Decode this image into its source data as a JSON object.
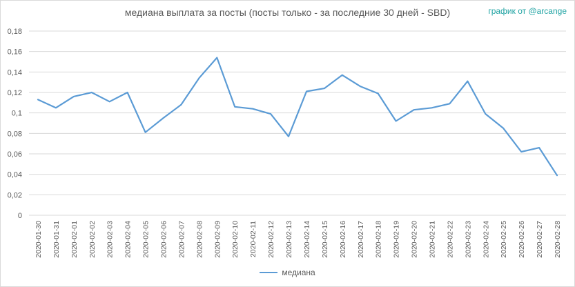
{
  "colors": {
    "series": "#5b9bd5",
    "grid": "#d9d9d9",
    "text": "#595959",
    "credit": "#1fa3a3"
  },
  "credit": "график от @arcange",
  "chart_data": {
    "type": "line",
    "title": "медиана выплата за посты  (посты только - за последние 30 дней - SBD)",
    "xlabel": "",
    "ylabel": "",
    "ylim": [
      0,
      0.18
    ],
    "yticks": [
      "0",
      "0,02",
      "0,04",
      "0,06",
      "0,08",
      "0,1",
      "0,12",
      "0,14",
      "0,16",
      "0,18"
    ],
    "yticks_values": [
      0,
      0.02,
      0.04,
      0.06,
      0.08,
      0.1,
      0.12,
      0.14,
      0.16,
      0.18
    ],
    "grid": true,
    "legend_position": "bottom",
    "categories": [
      "2020-01-30",
      "2020-01-31",
      "2020-02-01",
      "2020-02-02",
      "2020-02-03",
      "2020-02-04",
      "2020-02-05",
      "2020-02-06",
      "2020-02-07",
      "2020-02-08",
      "2020-02-09",
      "2020-02-10",
      "2020-02-11",
      "2020-02-12",
      "2020-02-13",
      "2020-02-14",
      "2020-02-15",
      "2020-02-16",
      "2020-02-17",
      "2020-02-18",
      "2020-02-19",
      "2020-02-20",
      "2020-02-21",
      "2020-02-22",
      "2020-02-23",
      "2020-02-24",
      "2020-02-25",
      "2020-02-26",
      "2020-02-27",
      "2020-02-28"
    ],
    "series": [
      {
        "name": "медиана",
        "values": [
          0.113,
          0.105,
          0.116,
          0.12,
          0.111,
          0.12,
          0.081,
          0.095,
          0.108,
          0.134,
          0.154,
          0.106,
          0.104,
          0.099,
          0.077,
          0.121,
          0.124,
          0.137,
          0.126,
          0.119,
          0.092,
          0.103,
          0.105,
          0.109,
          0.131,
          0.099,
          0.085,
          0.062,
          0.066,
          0.039
        ]
      }
    ]
  }
}
